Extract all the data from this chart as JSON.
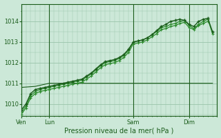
{
  "background_color": "#cce8d8",
  "grid_color": "#99c4aa",
  "line_color_dark": "#1a5c1a",
  "line_color_mid": "#2d8c2d",
  "title": "Pression niveau de la mer( hPa )",
  "ylim": [
    1009.4,
    1014.85
  ],
  "yticks": [
    1010,
    1011,
    1012,
    1013,
    1014
  ],
  "day_labels": [
    "Ven",
    "Lun",
    "Sam",
    "Dim"
  ],
  "day_positions": [
    0,
    12,
    48,
    72
  ],
  "xlim": [
    0,
    84
  ],
  "series_main_x": [
    0,
    2,
    4,
    6,
    8,
    10,
    12,
    14,
    16,
    18,
    20,
    22,
    24,
    26,
    28,
    30,
    32,
    34,
    36,
    38,
    40,
    42,
    44,
    46,
    48,
    50,
    52,
    54,
    56,
    58,
    60,
    62,
    64,
    66,
    68,
    70,
    72,
    74,
    76,
    78,
    80,
    82
  ],
  "series_main_y": [
    1009.7,
    1010.0,
    1010.5,
    1010.7,
    1010.75,
    1010.8,
    1010.85,
    1010.9,
    1010.95,
    1011.0,
    1011.05,
    1011.1,
    1011.15,
    1011.2,
    1011.35,
    1011.5,
    1011.7,
    1011.9,
    1012.05,
    1012.1,
    1012.15,
    1012.25,
    1012.4,
    1012.65,
    1013.0,
    1013.05,
    1013.1,
    1013.2,
    1013.35,
    1013.55,
    1013.75,
    1013.85,
    1014.0,
    1014.05,
    1014.1,
    1014.05,
    1013.85,
    1013.75,
    1014.0,
    1014.1,
    1014.15,
    1013.5
  ],
  "series_b_x": [
    0,
    2,
    4,
    6,
    8,
    10,
    12,
    14,
    16,
    18,
    20,
    22,
    24,
    26,
    28,
    30,
    32,
    34,
    36,
    38,
    40,
    42,
    44,
    46,
    48,
    50,
    52,
    54,
    56,
    58,
    60,
    62,
    64,
    66,
    68,
    70,
    72,
    74,
    76,
    78,
    80,
    82
  ],
  "series_b_y": [
    1009.6,
    1009.9,
    1010.4,
    1010.6,
    1010.7,
    1010.75,
    1010.8,
    1010.85,
    1010.9,
    1010.95,
    1011.0,
    1011.05,
    1011.1,
    1011.15,
    1011.3,
    1011.45,
    1011.65,
    1011.85,
    1012.0,
    1012.05,
    1012.1,
    1012.2,
    1012.35,
    1012.6,
    1013.0,
    1013.05,
    1013.1,
    1013.2,
    1013.35,
    1013.5,
    1013.7,
    1013.75,
    1013.85,
    1013.9,
    1014.0,
    1014.05,
    1013.8,
    1013.65,
    1013.85,
    1014.0,
    1014.1,
    1013.4
  ],
  "series_c_x": [
    0,
    2,
    4,
    6,
    8,
    10,
    12,
    14,
    16,
    18,
    20,
    22,
    24,
    26,
    28,
    30,
    32,
    34,
    36,
    38,
    40,
    42,
    44,
    46,
    48,
    50,
    52,
    54,
    56,
    58,
    60,
    62,
    64,
    66,
    68,
    70,
    72,
    74,
    76,
    78,
    80
  ],
  "series_c_y": [
    1009.5,
    1009.8,
    1010.3,
    1010.5,
    1010.6,
    1010.65,
    1010.7,
    1010.75,
    1010.8,
    1010.85,
    1010.9,
    1010.95,
    1011.0,
    1011.05,
    1011.2,
    1011.35,
    1011.55,
    1011.75,
    1011.9,
    1011.95,
    1012.0,
    1012.1,
    1012.25,
    1012.5,
    1012.9,
    1012.95,
    1013.0,
    1013.1,
    1013.25,
    1013.4,
    1013.6,
    1013.65,
    1013.75,
    1013.8,
    1013.9,
    1013.95,
    1013.7,
    1013.6,
    1013.8,
    1013.9,
    1014.0
  ],
  "flat_x": [
    0,
    6,
    12,
    48,
    70,
    82
  ],
  "flat_y": [
    1010.8,
    1010.85,
    1011.0,
    1011.0,
    1011.0,
    1011.0
  ]
}
